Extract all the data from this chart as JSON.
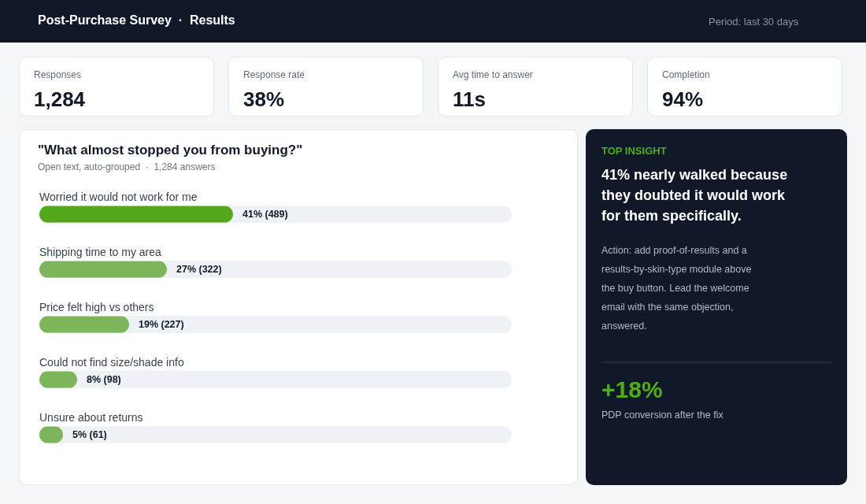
{
  "chart_data": [
    {
      "type": "other",
      "title": "Post-Purchase Survey  ·  Results",
      "subtitle": "Period: last 30 days",
      "annotations": [
        "Responses",
        "1,284",
        "Response rate",
        "38%",
        "Avg time to answer",
        "11s",
        "Completion",
        "94%"
      ]
    },
    {
      "type": "bar",
      "orientation": "horizontal",
      "title": "\"What almost stopped you from buying?\"",
      "subtitle": "Open text, auto-grouped  ·  1,284 answers",
      "categories": [
        "Worried it would not work for me",
        "Shipping time to my area",
        "Price felt high vs others",
        "Could not find size/shade info",
        "Unsure about returns"
      ],
      "values": [
        41,
        27,
        19,
        8,
        5
      ],
      "colors": [
        "#52a818",
        "#7db65a",
        "#7db65a",
        "#7db65a",
        "#7db65a"
      ],
      "xlim": [
        0,
        100
      ],
      "tick_labels": "y",
      "value_labels": [
        "41%  (489)",
        "27%  (322)",
        "19%  (227)",
        "8%  (98)",
        "5%  (61)"
      ]
    },
    {
      "type": "other",
      "title": "TOP INSIGHT",
      "subtitle": "41% nearly walked because they doubted it would work for them specifically.",
      "annotations": [
        "Action: add proof-of-results and a results-by-skin-type module above the buy button. Lead the welcome email with the same objection, answered.",
        "+18%",
        "PDP conversion after the fix"
      ]
    }
  ]
}
